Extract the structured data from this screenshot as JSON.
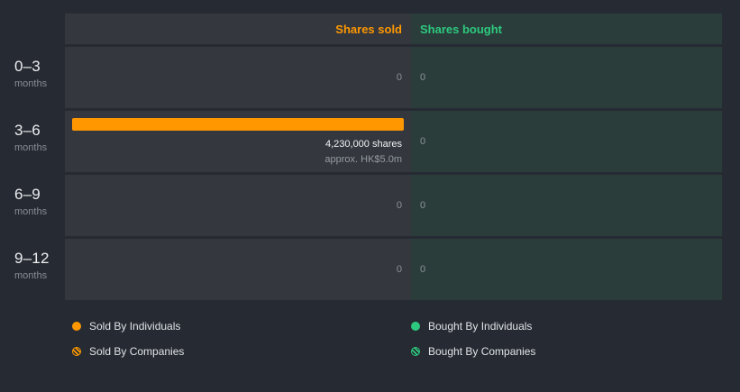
{
  "header": {
    "sold_label": "Shares sold",
    "bought_label": "Shares bought"
  },
  "rows": [
    {
      "period": "0–3",
      "unit": "months",
      "sold_zero": "0",
      "bought_zero": "0"
    },
    {
      "period": "3–6",
      "unit": "months",
      "bar_shares": "4,230,000 shares",
      "bar_approx": "approx. HK$5.0m",
      "bought_zero": "0"
    },
    {
      "period": "6–9",
      "unit": "months",
      "sold_zero": "0",
      "bought_zero": "0"
    },
    {
      "period": "9–12",
      "unit": "months",
      "sold_zero": "0",
      "bought_zero": "0"
    }
  ],
  "legend": {
    "sold_individuals": "Sold By Individuals",
    "sold_companies": "Sold By Companies",
    "bought_individuals": "Bought By Individuals",
    "bought_companies": "Bought By Companies"
  },
  "colors": {
    "sold_accent": "#ff9800",
    "bought_accent": "#2dc97e",
    "sold_panel": "#34373e",
    "bought_panel": "#2a3d3b",
    "background": "#262b33"
  },
  "chart_data": {
    "type": "bar",
    "orientation": "horizontal",
    "categories": [
      "0–3 months",
      "3–6 months",
      "6–9 months",
      "9–12 months"
    ],
    "series": [
      {
        "name": "Shares sold",
        "values": [
          0,
          4230000,
          0,
          0
        ],
        "color": "#ff9800"
      },
      {
        "name": "Shares bought",
        "values": [
          0,
          0,
          0,
          0
        ],
        "color": "#2dc97e"
      }
    ],
    "annotations": [
      {
        "category": "3–6 months",
        "series": "Shares sold",
        "label": "4,230,000 shares",
        "sublabel": "approx. HK$5.0m"
      }
    ],
    "legend": [
      "Sold By Individuals",
      "Sold By Companies",
      "Bought By Individuals",
      "Bought By Companies"
    ],
    "legend_position": "bottom",
    "grid": false
  }
}
